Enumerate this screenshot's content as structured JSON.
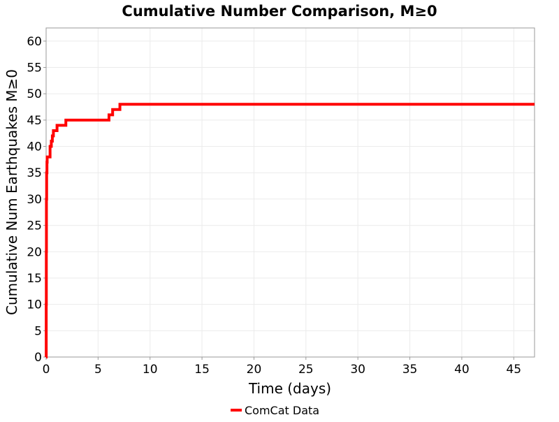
{
  "chart_data": {
    "type": "line",
    "title": "Cumulative Number Comparison, M≥0",
    "xlabel": "Time (days)",
    "ylabel": "Cumulative Num Earthquakes M≥0",
    "xlim": [
      0,
      47
    ],
    "ylim": [
      0,
      62.5
    ],
    "xticks": [
      0,
      5,
      10,
      15,
      20,
      25,
      30,
      35,
      40,
      45
    ],
    "yticks": [
      0,
      5,
      10,
      15,
      20,
      25,
      30,
      35,
      40,
      45,
      50,
      55,
      60
    ],
    "grid": true,
    "legend_position": "bottom",
    "series": [
      {
        "name": "ComCat Data",
        "color": "#ff0000",
        "step": true,
        "x": [
          0,
          0.01,
          0.02,
          0.03,
          0.05,
          0.08,
          0.1,
          0.38,
          0.5,
          0.6,
          0.7,
          1.05,
          1.9,
          6.05,
          6.4,
          7.1,
          47
        ],
        "y": [
          0,
          10,
          20,
          30,
          35,
          37,
          38,
          40,
          41,
          42,
          43,
          44,
          45,
          46,
          47,
          48,
          48
        ]
      }
    ]
  }
}
